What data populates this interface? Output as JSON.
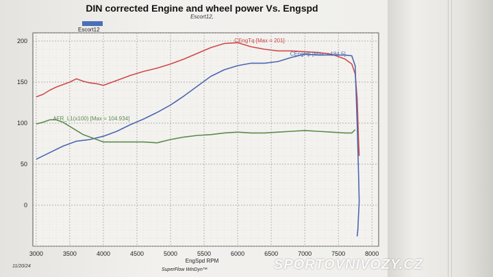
{
  "header": {
    "title": "DIN corrected Engine and wheel power Vs. Engspd",
    "subtitle": "Escort12,",
    "legend_label": "Escort12"
  },
  "footer": {
    "date": "11/20/24",
    "software": "SuperFlow WinDyn™",
    "watermark": "SPORTOVNIVOZY.CZ"
  },
  "colors": {
    "torque": "#d04848",
    "power": "#4a66b0",
    "afr": "#5a8a4a",
    "legend_swatch": "#4a6fb8"
  },
  "chart_data": {
    "type": "line",
    "title": "DIN corrected Engine and wheel power Vs. Engspd",
    "xlabel": "EngSpd RPM",
    "ylabel": "",
    "xlim": [
      2950,
      8100
    ],
    "ylim": [
      -50,
      210
    ],
    "xticks": [
      "3000",
      "3500",
      "4000",
      "4500",
      "5000",
      "5500",
      "6000",
      "6500",
      "7000",
      "7500",
      "8000"
    ],
    "yticks": [
      "200",
      "150",
      "100",
      "50",
      "0"
    ],
    "grid": true,
    "annotations": {
      "torque": "CEngTq [Max = 201]",
      "power": "CEngHp [Max = 184.5]",
      "afr": "AFR_L1(x100) [Max = 104.934]"
    },
    "series": [
      {
        "name": "CEngTq",
        "x": [
          3000,
          3100,
          3200,
          3300,
          3400,
          3500,
          3600,
          3700,
          3800,
          3900,
          4000,
          4200,
          4400,
          4600,
          4800,
          5000,
          5200,
          5400,
          5600,
          5800,
          6000,
          6200,
          6400,
          6600,
          6800,
          7000,
          7200,
          7400,
          7600,
          7700,
          7750,
          7780,
          7800,
          7810
        ],
        "y": [
          132,
          135,
          140,
          144,
          147,
          150,
          154,
          151,
          149,
          148,
          146,
          152,
          158,
          163,
          167,
          172,
          178,
          185,
          192,
          197,
          198,
          193,
          190,
          188,
          188,
          187,
          186,
          184,
          178,
          172,
          160,
          130,
          80,
          60
        ]
      },
      {
        "name": "CEngHp",
        "x": [
          3000,
          3200,
          3400,
          3600,
          3800,
          4000,
          4200,
          4400,
          4600,
          4800,
          5000,
          5200,
          5400,
          5600,
          5800,
          6000,
          6200,
          6400,
          6600,
          6800,
          7000,
          7200,
          7400,
          7600,
          7700,
          7750,
          7780,
          7800,
          7810,
          7790,
          7780
        ],
        "y": [
          56,
          64,
          72,
          78,
          80,
          84,
          90,
          98,
          105,
          113,
          122,
          133,
          145,
          157,
          165,
          170,
          173,
          173,
          175,
          180,
          184,
          183,
          183,
          183,
          182,
          170,
          100,
          40,
          5,
          -30,
          -38
        ]
      },
      {
        "name": "AFR_L1(x100)",
        "x": [
          3000,
          3100,
          3200,
          3300,
          3400,
          3500,
          3600,
          3700,
          3800,
          3900,
          4000,
          4200,
          4400,
          4600,
          4800,
          5000,
          5200,
          5400,
          5600,
          5800,
          6000,
          6200,
          6400,
          6600,
          6800,
          7000,
          7200,
          7400,
          7600,
          7700,
          7750
        ],
        "y": [
          99,
          101,
          104,
          104,
          101,
          96,
          91,
          86,
          83,
          80,
          77,
          77,
          77,
          77,
          76,
          80,
          83,
          85,
          86,
          88,
          89,
          88,
          88,
          89,
          90,
          91,
          90,
          89,
          88,
          88,
          92
        ]
      }
    ]
  }
}
